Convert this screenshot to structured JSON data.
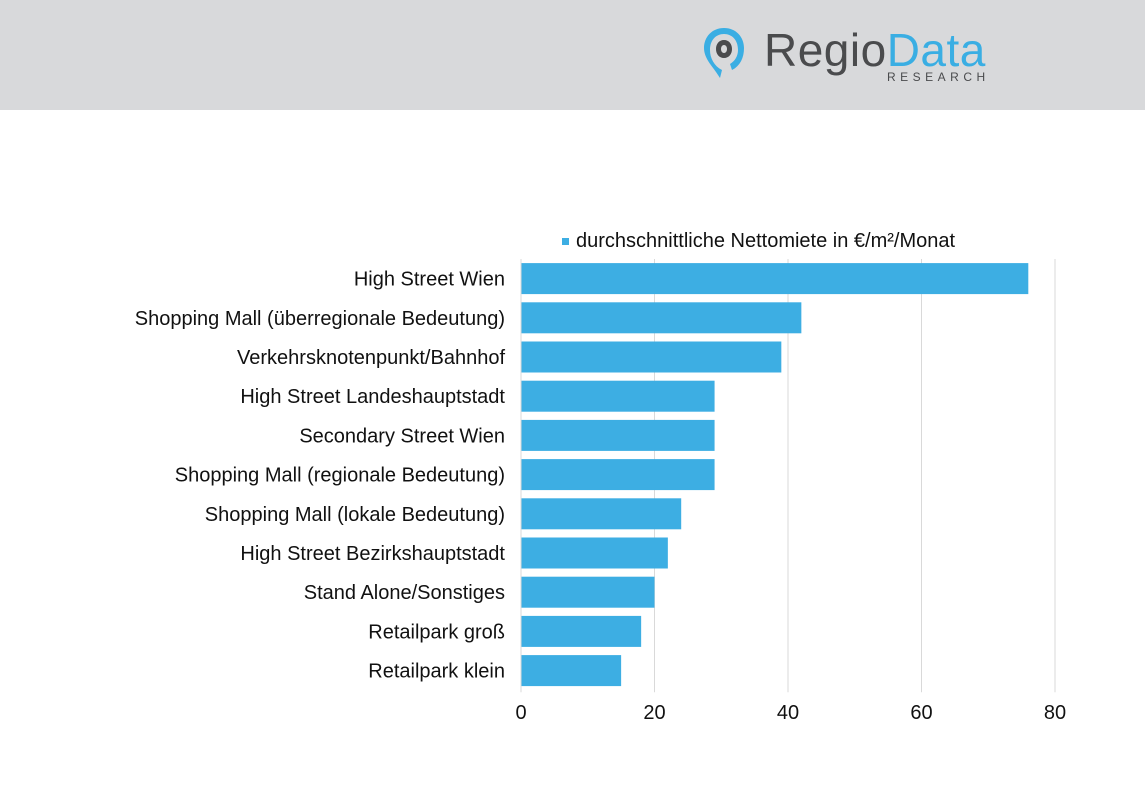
{
  "brand": {
    "name_part1": "Regio",
    "name_part2": "Data",
    "subtitle": "RESEARCH",
    "icon": "map-pin-icon",
    "color_dark": "#4a4b4d",
    "color_accent": "#3aaee3"
  },
  "chart_data": {
    "type": "bar",
    "orientation": "horizontal",
    "categories": [
      "High Street Wien",
      "Shopping Mall (überregionale Bedeutung)",
      "Verkehrsknotenpunkt/Bahnhof",
      "High Street Landeshauptstadt",
      "Secondary Street Wien",
      "Shopping Mall (regionale Bedeutung)",
      "Shopping Mall (lokale Bedeutung)",
      "High Street Bezirkshauptstadt",
      "Stand Alone/Sonstiges",
      "Retailpark groß",
      "Retailpark klein"
    ],
    "series": [
      {
        "name": "durchschnittliche Nettomiete in €/m²/Monat",
        "color": "#3daee3",
        "values": [
          76,
          42,
          39,
          29,
          29,
          29,
          24,
          22,
          20,
          18,
          15
        ]
      }
    ],
    "xlim": [
      0,
      80
    ],
    "xticks": [
      "0",
      "20",
      "40",
      "60",
      "80"
    ],
    "grid": true,
    "legend_position": "top-right"
  }
}
